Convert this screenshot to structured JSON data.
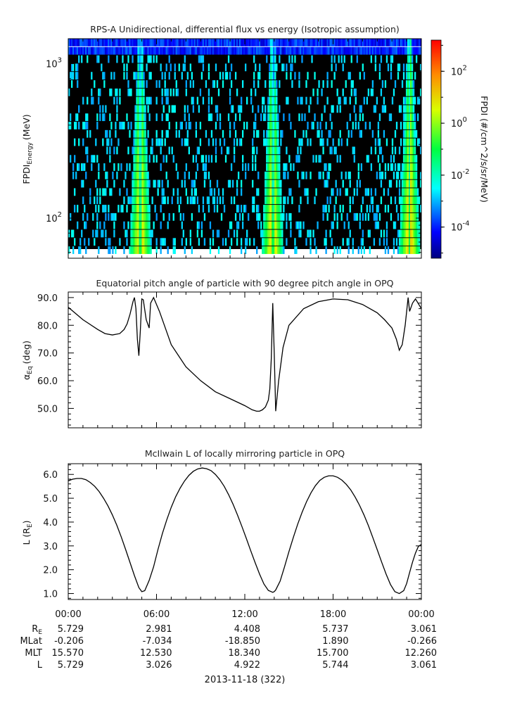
{
  "panels": {
    "spec": {
      "title": "RPS-A Unidirectional, differential flux vs energy (Isotropic assumption)",
      "ylabel": "FPDI",
      "ylabel_sub": "Energy",
      "ylabel_unit": "(MeV)",
      "yticks": [
        {
          "exp": "2",
          "value": 100
        },
        {
          "exp": "3",
          "value": 1000
        }
      ],
      "colorbar": {
        "label": "FPDI (#/cm^2/s/sr/MeV)",
        "range_log10": [
          -5.2,
          3.2
        ],
        "ticks": [
          {
            "exp": "2",
            "value": 2
          },
          {
            "exp": "0",
            "value": 0
          },
          {
            "exp": "-2",
            "value": -2
          },
          {
            "exp": "-4",
            "value": -4
          }
        ]
      }
    },
    "pitch": {
      "title": "Equatorial pitch angle of particle with 90 degree pitch angle in OPQ",
      "ylabel_main": "α",
      "ylabel_sub": "Eq",
      "ylabel_unit": "(deg)"
    },
    "lshell": {
      "title": "McIlwain L of locally mirroring particle in OPQ",
      "ylabel_main": "L (R",
      "ylabel_sub": "E",
      "ylabel_unit": ")"
    }
  },
  "xaxis": {
    "tick_labels": [
      "00:00",
      "06:00",
      "12:00",
      "18:00",
      "00:00"
    ],
    "date_label": "2013-11-18 (322)"
  },
  "ephemeris": {
    "rows": [
      {
        "label": "R",
        "label_sub": "E",
        "values": [
          "5.729",
          "2.981",
          "4.408",
          "5.737",
          "3.061"
        ]
      },
      {
        "label": "MLat",
        "label_sub": "",
        "values": [
          "-0.206",
          "-7.034",
          "-18.850",
          "1.890",
          "-0.266"
        ]
      },
      {
        "label": "MLT",
        "label_sub": "",
        "values": [
          "15.570",
          "12.530",
          "18.340",
          "15.700",
          "12.260"
        ]
      },
      {
        "label": "L",
        "label_sub": "",
        "values": [
          "5.729",
          "3.026",
          "4.922",
          "5.744",
          "3.061"
        ]
      }
    ]
  },
  "chart_data": [
    {
      "type": "heatmap",
      "title": "RPS-A Unidirectional, differential flux vs energy (Isotropic assumption)",
      "xlabel": "",
      "ylabel": "FPDI Energy (MeV)",
      "x_range_hours": [
        0,
        24
      ],
      "y_scale": "log",
      "y_range": [
        55,
        1450
      ],
      "z_label": "FPDI (#/cm^2/s/sr/MeV)",
      "z_scale": "log",
      "z_range_log10": [
        -5.2,
        3.2
      ],
      "bright_intervals_hours": [
        [
          3.9,
          5.3
        ],
        [
          13.1,
          14.3
        ],
        [
          22.2,
          23.6
        ]
      ],
      "bright_centers_hours": [
        4.9,
        13.9,
        23.2
      ]
    },
    {
      "type": "line",
      "title": "Equatorial pitch angle of particle with 90 degree pitch angle in OPQ",
      "xlabel": "",
      "ylabel": "αEq (deg)",
      "ylim": [
        43,
        92
      ],
      "yticks": [
        50,
        60,
        70,
        80,
        90
      ],
      "x_hours": [
        0,
        1,
        2,
        2.5,
        3,
        3.5,
        3.8,
        4.0,
        4.2,
        4.4,
        4.5,
        4.6,
        4.7,
        4.8,
        4.9,
        5.0,
        5.1,
        5.3,
        5.5,
        5.6,
        5.8,
        6.2,
        7,
        8,
        9,
        10,
        11,
        12,
        12.5,
        12.8,
        13.0,
        13.2,
        13.4,
        13.6,
        13.7,
        13.8,
        13.9,
        14.0,
        14.1,
        14.3,
        14.6,
        15,
        16,
        17,
        18,
        19,
        20,
        21,
        21.5,
        22.0,
        22.3,
        22.5,
        22.7,
        22.9,
        23.1,
        23.2,
        23.4,
        23.6,
        24
      ],
      "y": [
        86.5,
        82,
        78.5,
        77,
        76.5,
        77,
        78.5,
        80.5,
        84,
        88.5,
        90,
        86,
        75,
        69,
        78,
        89.5,
        89.2,
        82,
        79,
        88,
        90,
        85,
        73,
        65,
        60,
        56,
        53.5,
        51,
        49.5,
        49,
        49,
        49.5,
        50.5,
        53,
        57,
        68,
        88,
        70,
        49,
        60,
        72,
        80,
        86,
        88.5,
        89.5,
        89.2,
        87.5,
        84.5,
        82,
        79,
        75,
        71,
        73,
        80,
        90,
        85,
        88,
        89.5,
        86
      ]
    },
    {
      "type": "line",
      "title": "McIlwain L of locally mirroring particle in OPQ",
      "xlabel": "",
      "ylabel": "L (RE)",
      "ylim": [
        0.75,
        6.45
      ],
      "yticks": [
        1,
        2,
        3,
        4,
        5,
        6
      ],
      "x_hours": [
        0,
        0.3,
        0.6,
        0.9,
        1.2,
        1.5,
        1.8,
        2.1,
        2.4,
        2.7,
        3.0,
        3.3,
        3.6,
        3.9,
        4.2,
        4.5,
        4.8,
        5.0,
        5.2,
        5.5,
        5.8,
        6.1,
        6.4,
        6.7,
        7.0,
        7.3,
        7.6,
        7.9,
        8.2,
        8.5,
        8.8,
        9.1,
        9.4,
        9.7,
        10.0,
        10.3,
        10.6,
        10.9,
        11.2,
        11.5,
        11.8,
        12.1,
        12.4,
        12.7,
        13.0,
        13.3,
        13.6,
        13.9,
        14.0,
        14.1,
        14.4,
        14.7,
        15.0,
        15.3,
        15.6,
        15.9,
        16.2,
        16.5,
        16.8,
        17.1,
        17.4,
        17.7,
        18.0,
        18.3,
        18.6,
        18.9,
        19.2,
        19.5,
        19.8,
        20.1,
        20.4,
        20.7,
        21.0,
        21.3,
        21.6,
        21.9,
        22.2,
        22.5,
        22.8,
        23.0,
        23.2,
        23.4,
        23.6,
        23.8,
        24.0
      ],
      "y": [
        5.73,
        5.8,
        5.83,
        5.83,
        5.78,
        5.66,
        5.5,
        5.28,
        5.0,
        4.68,
        4.3,
        3.87,
        3.38,
        2.85,
        2.3,
        1.75,
        1.25,
        1.08,
        1.12,
        1.55,
        2.12,
        2.85,
        3.52,
        4.1,
        4.62,
        5.06,
        5.42,
        5.72,
        5.96,
        6.13,
        6.23,
        6.27,
        6.24,
        6.16,
        6.0,
        5.78,
        5.5,
        5.15,
        4.75,
        4.3,
        3.82,
        3.32,
        2.8,
        2.3,
        1.82,
        1.4,
        1.13,
        1.05,
        1.08,
        1.15,
        1.52,
        2.12,
        2.76,
        3.36,
        3.92,
        4.42,
        4.86,
        5.23,
        5.53,
        5.75,
        5.88,
        5.94,
        5.94,
        5.88,
        5.76,
        5.58,
        5.35,
        5.05,
        4.7,
        4.3,
        3.85,
        3.35,
        2.84,
        2.32,
        1.82,
        1.38,
        1.08,
        1.0,
        1.12,
        1.42,
        1.88,
        2.32,
        2.7,
        2.98,
        3.06
      ]
    }
  ]
}
